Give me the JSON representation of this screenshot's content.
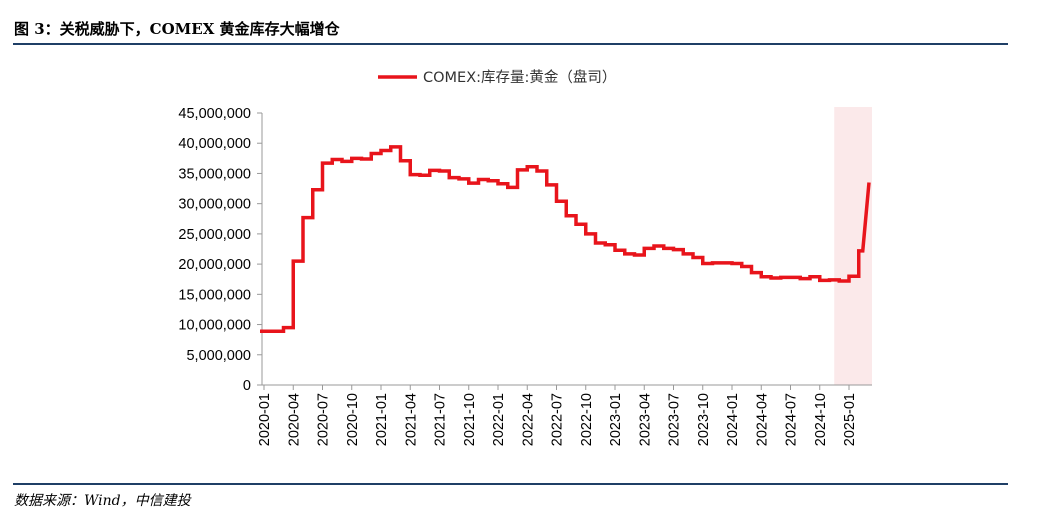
{
  "header": {
    "title": "图 3：关税威胁下，COMEX 黄金库存大幅增仓"
  },
  "footer": {
    "source": "数据来源：Wind，中信建投"
  },
  "chart_data": {
    "type": "line",
    "title": "",
    "xlabel": "",
    "ylabel": "",
    "ylim": [
      0,
      45000000
    ],
    "yticks": [
      "0",
      "5,000,000",
      "10,000,000",
      "15,000,000",
      "20,000,000",
      "25,000,000",
      "30,000,000",
      "35,000,000",
      "40,000,000",
      "45,000,000"
    ],
    "xticks": [
      "2020-01",
      "2020-04",
      "2020-07",
      "2020-10",
      "2021-01",
      "2021-04",
      "2021-07",
      "2021-10",
      "2022-01",
      "2022-04",
      "2022-07",
      "2022-10",
      "2023-01",
      "2023-04",
      "2023-07",
      "2023-10",
      "2024-01",
      "2024-04",
      "2024-07",
      "2024-10",
      "2025-01"
    ],
    "legend": {
      "placement": "top-center"
    },
    "highlight": {
      "from": "2024-12",
      "to": "2025-02",
      "color": "#fbe9ea"
    },
    "series": [
      {
        "name": "COMEX:库存量:黄金（盘司）",
        "color": "#e8141b",
        "x": [
          "2020-01",
          "2020-02",
          "2020-03",
          "2020-04",
          "2020-05",
          "2020-06",
          "2020-07",
          "2020-08",
          "2020-09",
          "2020-10",
          "2020-11",
          "2020-12",
          "2021-01",
          "2021-02",
          "2021-03",
          "2021-04",
          "2021-05",
          "2021-06",
          "2021-07",
          "2021-08",
          "2021-09",
          "2021-10",
          "2021-11",
          "2021-12",
          "2022-01",
          "2022-02",
          "2022-03",
          "2022-04",
          "2022-05",
          "2022-06",
          "2022-07",
          "2022-08",
          "2022-09",
          "2022-10",
          "2022-11",
          "2022-12",
          "2023-01",
          "2023-02",
          "2023-03",
          "2023-04",
          "2023-05",
          "2023-06",
          "2023-07",
          "2023-08",
          "2023-09",
          "2023-10",
          "2023-11",
          "2023-12",
          "2024-01",
          "2024-02",
          "2024-03",
          "2024-04",
          "2024-05",
          "2024-06",
          "2024-07",
          "2024-08",
          "2024-09",
          "2024-10",
          "2024-11",
          "2024-12",
          "2025-01",
          "2025-02"
        ],
        "values": [
          8900000,
          8900000,
          9500000,
          20500000,
          27700000,
          32300000,
          36700000,
          37300000,
          37000000,
          37500000,
          37400000,
          38300000,
          38800000,
          39400000,
          37100000,
          34800000,
          34700000,
          35500000,
          35400000,
          34300000,
          34100000,
          33400000,
          34000000,
          33800000,
          33300000,
          32700000,
          35600000,
          36100000,
          35400000,
          33100000,
          30400000,
          28000000,
          26600000,
          25000000,
          23500000,
          23200000,
          22300000,
          21700000,
          21500000,
          22600000,
          23000000,
          22600000,
          22400000,
          21700000,
          21100000,
          20100000,
          20200000,
          20200000,
          20100000,
          19600000,
          18600000,
          17900000,
          17700000,
          17800000,
          17800000,
          17600000,
          17900000,
          17300000,
          17400000,
          17200000,
          18000000,
          22200000
        ]
      }
    ]
  }
}
